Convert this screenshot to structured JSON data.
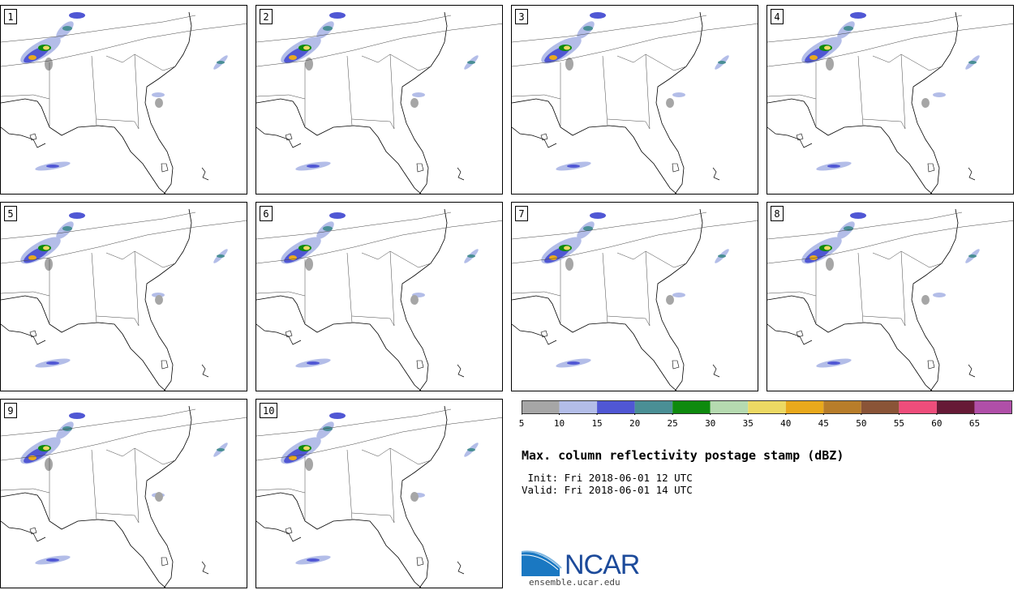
{
  "panels": [
    {
      "label": "1"
    },
    {
      "label": "2"
    },
    {
      "label": "3"
    },
    {
      "label": "4"
    },
    {
      "label": "5"
    },
    {
      "label": "6"
    },
    {
      "label": "7"
    },
    {
      "label": "8"
    },
    {
      "label": "9"
    },
    {
      "label": "10"
    }
  ],
  "colorbar": {
    "colors": [
      "#a6a6a6",
      "#b3bde8",
      "#5057d4",
      "#4a8f95",
      "#0e8a0e",
      "#b5dab0",
      "#ecd963",
      "#e9a91c",
      "#b87d2a",
      "#8a5437",
      "#ee4d7b",
      "#661a36",
      "#b04fa8"
    ],
    "ticks": [
      "5",
      "10",
      "15",
      "20",
      "25",
      "30",
      "35",
      "40",
      "45",
      "50",
      "55",
      "60",
      "65"
    ]
  },
  "title": "Max. column reflectivity postage stamp (dBZ)",
  "init_line": " Init: Fri 2018-06-01 12 UTC",
  "valid_line": "Valid: Fri 2018-06-01 14 UTC",
  "logo": {
    "name": "NCAR",
    "url": "ensemble.ucar.edu",
    "icon": "ncar-logo-icon"
  }
}
